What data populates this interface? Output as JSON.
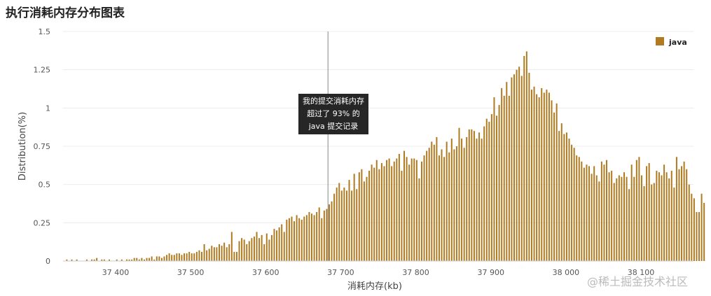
{
  "title": "执行消耗内存分布图表",
  "tooltip": {
    "lines": [
      "我的提交消耗内存",
      "超过了 93% 的",
      "java 提交记录"
    ]
  },
  "watermark": "@稀土掘金技术社区",
  "colors": {
    "bar": "#b07a21",
    "grid": "#ececec",
    "marker": "#888888"
  },
  "chart_data": {
    "type": "bar",
    "xlabel": "消耗内存(kb)",
    "ylabel": "Distribution(%)",
    "ylim": [
      0,
      1.5
    ],
    "yticks": [
      0,
      0.25,
      0.5,
      0.75,
      1,
      1.25,
      1.5
    ],
    "ytick_labels": [
      "0",
      "0.25",
      "0.5",
      "0.75",
      "1",
      "1.25",
      "1.5"
    ],
    "xlim": [
      37330,
      38170
    ],
    "xticks": [
      37400,
      37500,
      37600,
      37700,
      37800,
      37900,
      38000,
      38100
    ],
    "xtick_labels": [
      "37 400",
      "37 500",
      "37 600",
      "37 700",
      "37 800",
      "37 900",
      "38 000",
      "38 100"
    ],
    "marker_x": 37683,
    "grid": true,
    "legend_position": "top-right",
    "series": [
      {
        "name": "java",
        "bin_start": 37335,
        "bin_width": 3.33,
        "values": [
          0.01,
          0,
          0.01,
          0,
          0.01,
          0,
          0,
          0,
          0.01,
          0,
          0.01,
          0.01,
          0.02,
          0,
          0.01,
          0.01,
          0,
          0.01,
          0,
          0,
          0.01,
          0,
          0.01,
          0,
          0.01,
          0.01,
          0.01,
          0.02,
          0.02,
          0.01,
          0.02,
          0.01,
          0.02,
          0.02,
          0.03,
          0.01,
          0.03,
          0.03,
          0.02,
          0.03,
          0.04,
          0.05,
          0.04,
          0.04,
          0.05,
          0.05,
          0.04,
          0.05,
          0.05,
          0.06,
          0.05,
          0.05,
          0.06,
          0.07,
          0.06,
          0.11,
          0.07,
          0.08,
          0.1,
          0.09,
          0.09,
          0.11,
          0.1,
          0.12,
          0.09,
          0.11,
          0.19,
          0.06,
          0.06,
          0.13,
          0.15,
          0.14,
          0.11,
          0.13,
          0.15,
          0.16,
          0.19,
          0.15,
          0.17,
          0.11,
          0.18,
          0.14,
          0.17,
          0.21,
          0.2,
          0.22,
          0.24,
          0.19,
          0.27,
          0.28,
          0.29,
          0.26,
          0.3,
          0.28,
          0.27,
          0.29,
          0.3,
          0.32,
          0.31,
          0.3,
          0.32,
          0.35,
          0.28,
          0.33,
          0.34,
          0.37,
          0.39,
          0.44,
          0.48,
          0.51,
          0.46,
          0.48,
          0.46,
          0.53,
          0.46,
          0.57,
          0.47,
          0.58,
          0.6,
          0.52,
          0.55,
          0.59,
          0.63,
          0.61,
          0.66,
          0.6,
          0.64,
          0.62,
          0.66,
          0.67,
          0.62,
          0.65,
          0.67,
          0.7,
          0.59,
          0.72,
          0.68,
          0.63,
          0.67,
          0.67,
          0.66,
          0.54,
          0.65,
          0.69,
          0.72,
          0.74,
          0.78,
          0.76,
          0.81,
          0.69,
          0.73,
          0.68,
          0.78,
          0.71,
          0.8,
          0.73,
          0.75,
          0.87,
          0.8,
          0.74,
          0.81,
          0.86,
          0.86,
          0.85,
          0.8,
          0.84,
          0.8,
          0.88,
          0.93,
          0.91,
          0.96,
          1.07,
          0.95,
          1.02,
          1.13,
          1.08,
          1.17,
          1.08,
          1.2,
          1.22,
          1.25,
          1.27,
          1.21,
          1.34,
          1.37,
          1.23,
          1.12,
          1.14,
          1.09,
          1.07,
          1.13,
          1.1,
          1.12,
          1.1,
          1.05,
          0.97,
          1.03,
          0.85,
          0.9,
          0.83,
          0.84,
          0.8,
          0.76,
          0.74,
          0.69,
          0.68,
          0.65,
          0.61,
          0.63,
          0.62,
          0.57,
          0.62,
          0.56,
          0.52,
          0.65,
          0.63,
          0.66,
          0.58,
          0.59,
          0.51,
          0.54,
          0.56,
          0.55,
          0.58,
          0.55,
          0.47,
          0.63,
          0.55,
          0.66,
          0.68,
          0.56,
          0.49,
          0.62,
          0.64,
          0.5,
          0.51,
          0.59,
          0.58,
          0.56,
          0.63,
          0.58,
          0.54,
          0.59,
          0.48,
          0.68,
          0.6,
          0.62,
          0.65,
          0.6,
          0.5,
          0.44,
          0.41,
          0.32,
          0.32,
          0.44,
          0.38
        ]
      }
    ]
  }
}
